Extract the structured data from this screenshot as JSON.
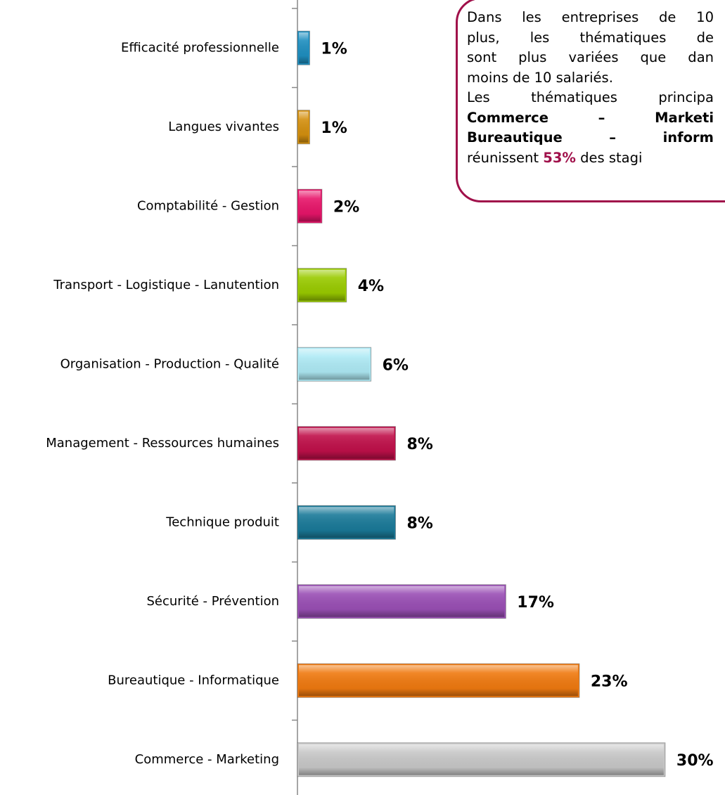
{
  "chart_data": {
    "type": "bar",
    "orientation": "horizontal",
    "categories": [
      "Efficacité professionnelle",
      "Langues vivantes",
      "Comptabilité - Gestion",
      "Transport - Logistique - Lanutention",
      "Organisation - Production - Qualité",
      "Management - Ressources humaines",
      "Technique produit",
      "Sécurité - Prévention",
      "Bureautique - Informatique",
      "Commerce - Marketing"
    ],
    "values": [
      1,
      1,
      2,
      4,
      6,
      8,
      8,
      17,
      23,
      30
    ],
    "value_labels": [
      "1%",
      "1%",
      "2%",
      "4%",
      "6%",
      "8%",
      "8%",
      "17%",
      "23%",
      "30%"
    ],
    "colors": [
      "#1f8fc0",
      "#d4900f",
      "#e8156a",
      "#9acb00",
      "#aeeaf5",
      "#c0104a",
      "#1a7a99",
      "#9a4fb5",
      "#f07a10",
      "#c8c8c8"
    ]
  },
  "annotation": {
    "lines": [
      "Dans les entreprises de 10",
      "plus, les thématiques de",
      "sont plus variées que dan",
      "moins de 10 salariés.",
      "Les thématiques principa",
      "Commerce – Marketi",
      "Bureautique – inform"
    ],
    "last_line": {
      "before": "réunissent ",
      "highlight": "53%",
      "after": " des stagi"
    }
  }
}
